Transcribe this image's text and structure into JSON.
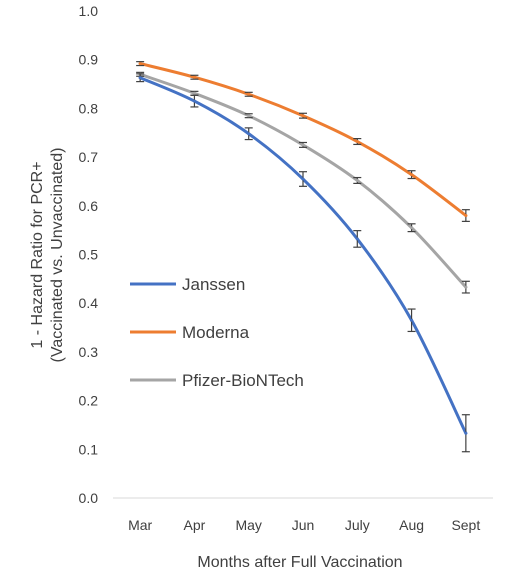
{
  "chart_data": {
    "type": "line",
    "categories": [
      "Mar",
      "Apr",
      "May",
      "Jun",
      "July",
      "Aug",
      "Sept"
    ],
    "xlabel": "Months after Full Vaccination",
    "ylabel_lines": [
      "1 - Hazard Ratio for PCR+",
      "(Vaccinated vs. Unvaccinated)"
    ],
    "ylim": [
      0.0,
      1.0
    ],
    "yticks": [
      "0.0",
      "0.1",
      "0.2",
      "0.3",
      "0.4",
      "0.5",
      "0.6",
      "0.7",
      "0.8",
      "0.9",
      "1.0"
    ],
    "grid": false,
    "legend_position": "lower-left",
    "error_bars": true,
    "series": [
      {
        "name": "Janssen",
        "color": "#4472c4",
        "values": [
          0.863,
          0.815,
          0.748,
          0.655,
          0.532,
          0.365,
          0.133
        ],
        "err": [
          0.008,
          0.012,
          0.012,
          0.015,
          0.017,
          0.023,
          0.038
        ]
      },
      {
        "name": "Moderna",
        "color": "#ed7d31",
        "values": [
          0.892,
          0.864,
          0.829,
          0.785,
          0.732,
          0.664,
          0.58
        ],
        "err": [
          0.004,
          0.004,
          0.004,
          0.005,
          0.006,
          0.008,
          0.012
        ]
      },
      {
        "name": "Pfizer-BioNTech",
        "color": "#a5a5a5",
        "values": [
          0.87,
          0.831,
          0.785,
          0.725,
          0.652,
          0.555,
          0.433
        ],
        "err": [
          0.004,
          0.004,
          0.004,
          0.005,
          0.006,
          0.008,
          0.012
        ]
      }
    ]
  }
}
